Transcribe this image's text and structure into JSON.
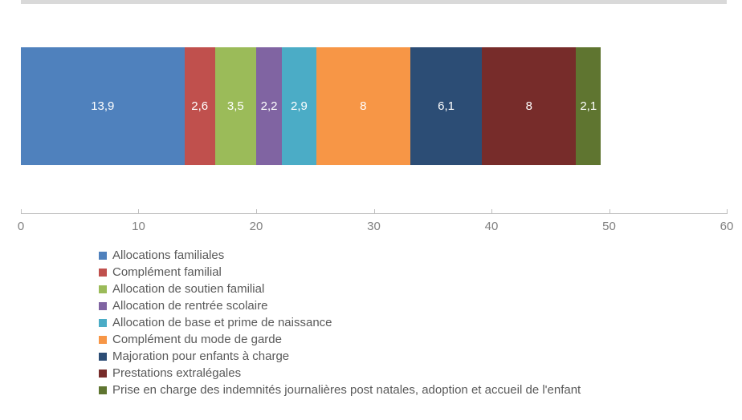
{
  "chart_data": {
    "type": "bar",
    "orientation": "horizontal",
    "stacked": true,
    "title": "",
    "categories": [
      ""
    ],
    "series": [
      {
        "name": "Allocations familiales",
        "value": 13.9,
        "label": "13,9",
        "color": "#4F81BD"
      },
      {
        "name": "Complément familial",
        "value": 2.6,
        "label": "2,6",
        "color": "#C0504D"
      },
      {
        "name": "Allocation de soutien familial",
        "value": 3.5,
        "label": "3,5",
        "color": "#9BBB59"
      },
      {
        "name": "Allocation de rentrée scolaire",
        "value": 2.2,
        "label": "2,2",
        "color": "#8064A2"
      },
      {
        "name": "Allocation de base et prime de naissance",
        "value": 2.9,
        "label": "2,9",
        "color": "#4BACC6"
      },
      {
        "name": "Complément du mode de garde",
        "value": 8,
        "label": "8",
        "color": "#F79646"
      },
      {
        "name": "Majoration pour enfants à charge",
        "value": 6.1,
        "label": "6,1",
        "color": "#2C4D75"
      },
      {
        "name": "Prestations extralégales",
        "value": 8,
        "label": "8",
        "color": "#772C2A"
      },
      {
        "name": "Prise en charge des indemnités journalières post natales, adoption et accueil de l'enfant",
        "value": 2.1,
        "label": "2,1",
        "color": "#5F7530"
      }
    ],
    "x_axis": {
      "min": 0,
      "max": 60,
      "tick_interval": 10,
      "tick_labels": [
        "0",
        "10",
        "20",
        "30",
        "40",
        "50",
        "60"
      ]
    },
    "legend_position": "bottom-left",
    "grid": false,
    "value_label_color": "#FFFFFF",
    "axis_line_color": "#BFBFBF",
    "axis_label_color": "#808080",
    "legend_text_color": "#595959",
    "plot_top_border_color": "#D9D9D9"
  }
}
